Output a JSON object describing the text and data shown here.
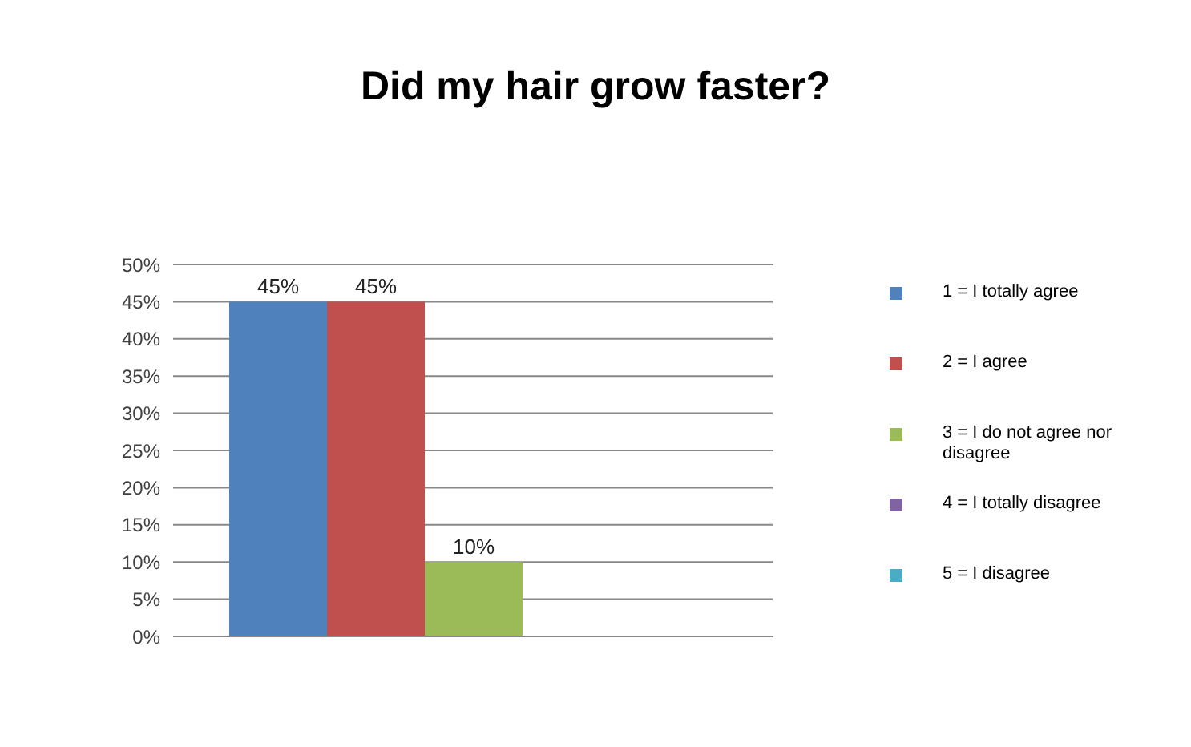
{
  "chart_data": {
    "type": "bar",
    "title": "Did my hair grow faster?",
    "categories": [
      null
    ],
    "series": [
      {
        "name": "1 = I totally agree",
        "color": "#4f81bd",
        "values": [
          45
        ],
        "value_labels": [
          "45%"
        ]
      },
      {
        "name": "2 = I agree",
        "color": "#c0504d",
        "values": [
          45
        ],
        "value_labels": [
          "45%"
        ]
      },
      {
        "name": "3 = I do not agree nor disagree",
        "color": "#9bbb59",
        "values": [
          10
        ],
        "value_labels": [
          "10%"
        ]
      },
      {
        "name": "4 = I totally disagree",
        "color": "#8064a2",
        "values": [
          0
        ],
        "value_labels": [
          null
        ]
      },
      {
        "name": "5 = I disagree",
        "color": "#4bacc6",
        "values": [
          0
        ],
        "value_labels": [
          null
        ]
      }
    ],
    "ylim": [
      0,
      50
    ],
    "yticks": [
      {
        "value": 0,
        "label": "0%"
      },
      {
        "value": 5,
        "label": "5%"
      },
      {
        "value": 10,
        "label": "10%"
      },
      {
        "value": 15,
        "label": "15%"
      },
      {
        "value": 20,
        "label": "20%"
      },
      {
        "value": 25,
        "label": "25%"
      },
      {
        "value": 30,
        "label": "30%"
      },
      {
        "value": 35,
        "label": "35%"
      },
      {
        "value": 40,
        "label": "40%"
      },
      {
        "value": 45,
        "label": "45%"
      },
      {
        "value": 50,
        "label": "50%"
      }
    ],
    "grid": "y",
    "legend": "right"
  }
}
